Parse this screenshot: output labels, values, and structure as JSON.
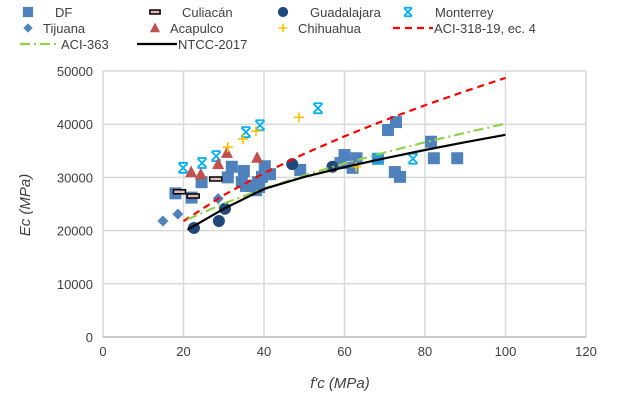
{
  "chart_data": {
    "type": "scatter",
    "xlabel": "f'c (MPa)",
    "ylabel": "Ec (MPa)",
    "xlim": [
      0,
      120
    ],
    "ylim": [
      0,
      50000
    ],
    "xticks": [
      0,
      20,
      40,
      60,
      80,
      100,
      120
    ],
    "yticks": [
      0,
      10000,
      20000,
      30000,
      40000,
      50000
    ],
    "grid": true,
    "legend": "top",
    "series": [
      {
        "name": "DF",
        "marker": "square",
        "color": "#4f81bd",
        "points": [
          [
            18,
            27000
          ],
          [
            22,
            26200
          ],
          [
            24.5,
            29100
          ],
          [
            31,
            30000
          ],
          [
            32,
            32000
          ],
          [
            35,
            31200
          ],
          [
            34.5,
            29100
          ],
          [
            35.5,
            28400
          ],
          [
            37,
            28400
          ],
          [
            38,
            27600
          ],
          [
            38.5,
            29100
          ],
          [
            39.5,
            30100
          ],
          [
            40.2,
            32100
          ],
          [
            41.5,
            30600
          ],
          [
            38.8,
            28200
          ],
          [
            49,
            31400
          ],
          [
            60,
            34200
          ],
          [
            59,
            32700
          ],
          [
            63,
            33600
          ],
          [
            62,
            31800
          ],
          [
            68.3,
            33500
          ],
          [
            70.8,
            38900
          ],
          [
            72.8,
            40400
          ],
          [
            72.5,
            31000
          ],
          [
            73.8,
            30100
          ],
          [
            81.5,
            36700
          ],
          [
            82.2,
            33600
          ],
          [
            88,
            33600
          ]
        ]
      },
      {
        "name": "Culiacán",
        "marker": "dash",
        "color": "#000000",
        "points": [
          [
            19,
            27300
          ],
          [
            22.4,
            26500
          ],
          [
            28,
            29700
          ]
        ]
      },
      {
        "name": "Guadalajara",
        "marker": "circle",
        "color": "#1f497d",
        "points": [
          [
            22.6,
            20500
          ],
          [
            28.8,
            21800
          ],
          [
            30.3,
            24100
          ],
          [
            47,
            32500
          ],
          [
            57,
            32000
          ]
        ]
      },
      {
        "name": "Monterrey",
        "marker": "asterisk",
        "color": "#00b0f0",
        "points": [
          [
            19.9,
            31800
          ],
          [
            24.6,
            32700
          ],
          [
            28.1,
            34000
          ],
          [
            35.5,
            38500
          ],
          [
            39,
            39800
          ],
          [
            53.4,
            43000
          ],
          [
            68.3,
            33500
          ],
          [
            77,
            33500
          ]
        ]
      },
      {
        "name": "Tijuana",
        "marker": "diamond",
        "color": "#4f81bd",
        "points": [
          [
            14.9,
            21800
          ],
          [
            18.6,
            23100
          ],
          [
            28.6,
            26000
          ]
        ]
      },
      {
        "name": "Acapulco",
        "marker": "triangle",
        "color": "#c0504d",
        "points": [
          [
            21.9,
            31000
          ],
          [
            24.3,
            30600
          ],
          [
            28.6,
            32500
          ],
          [
            30.8,
            34600
          ],
          [
            38.3,
            33700
          ]
        ]
      },
      {
        "name": "Chihuahua",
        "marker": "plus",
        "color": "#ffc000",
        "points": [
          [
            31,
            35700
          ],
          [
            34.8,
            37200
          ],
          [
            38,
            38700
          ],
          [
            48.7,
            41300
          ],
          [
            62.9,
            32000
          ]
        ]
      },
      {
        "name": "ACI-318-19, ec. 4",
        "line": "dashed",
        "color": "#ff0000",
        "points": [
          [
            20,
            21779
          ],
          [
            30,
            26674
          ],
          [
            40,
            30800
          ],
          [
            50,
            34436
          ],
          [
            60,
            37722
          ],
          [
            70,
            40745
          ],
          [
            80,
            43558
          ],
          [
            90,
            46200
          ],
          [
            100,
            48700
          ]
        ]
      },
      {
        "name": "ACI-363",
        "line": "dashdot",
        "color": "#92d050",
        "points": [
          [
            21,
            22114
          ],
          [
            30,
            25084
          ],
          [
            40,
            27897
          ],
          [
            50,
            30376
          ],
          [
            60,
            32617
          ],
          [
            70,
            34677
          ],
          [
            80,
            36595
          ],
          [
            90,
            38396
          ],
          [
            100,
            40100
          ]
        ]
      },
      {
        "name": "NTCC-2017",
        "line": "solid",
        "color": "#000000",
        "points": [
          [
            21,
            20163
          ],
          [
            30,
            24100
          ],
          [
            40,
            27828
          ],
          [
            50,
            30092
          ],
          [
            60,
            31914
          ],
          [
            70,
            33590
          ],
          [
            80,
            35150
          ],
          [
            90,
            36614
          ],
          [
            100,
            38000
          ]
        ]
      }
    ]
  }
}
